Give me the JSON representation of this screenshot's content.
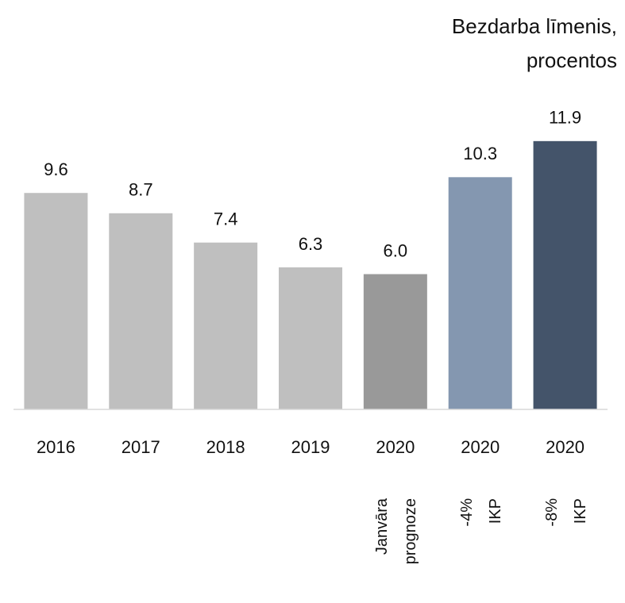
{
  "chart_data": {
    "type": "bar",
    "title_lines": [
      "Bezdarba līmenis,",
      "procentos"
    ],
    "categories": [
      "2016",
      "2017",
      "2018",
      "2019",
      "2020",
      "2020",
      "2020"
    ],
    "sublabels": [
      null,
      null,
      null,
      null,
      [
        "Janvāra",
        "prognoze"
      ],
      [
        "-4%",
        "IKP"
      ],
      [
        "-8%",
        "IKP"
      ]
    ],
    "values": [
      9.6,
      8.7,
      7.4,
      6.3,
      6.0,
      10.3,
      11.9
    ],
    "value_labels": [
      "9.6",
      "8.7",
      "7.4",
      "6.3",
      "6.0",
      "10.3",
      "11.9"
    ],
    "colors": [
      "#bfbfbf",
      "#bfbfbf",
      "#bfbfbf",
      "#bfbfbf",
      "#999999",
      "#8497b0",
      "#44546a"
    ],
    "ylim": [
      0,
      12
    ]
  }
}
